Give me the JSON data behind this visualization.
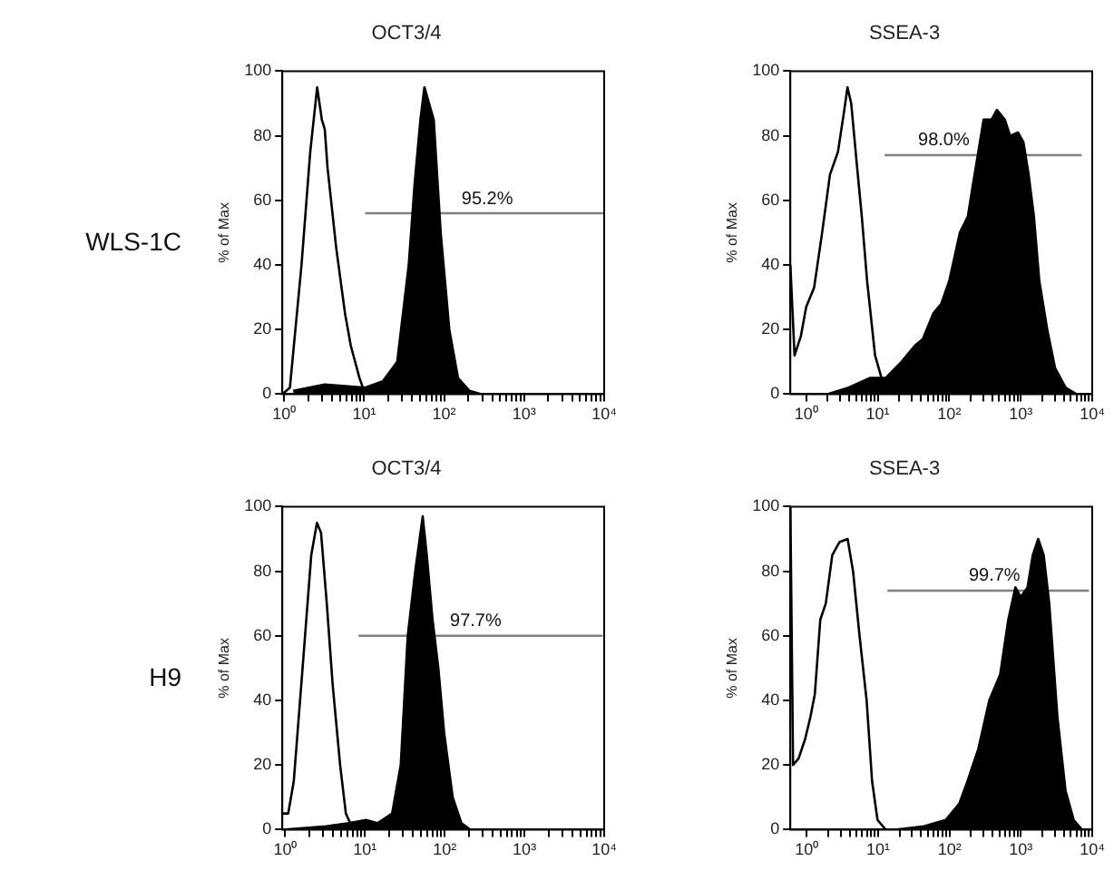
{
  "chart_data": [
    {
      "type": "line",
      "title": "OCT3/4",
      "ylabel": "% of Max",
      "annotations": [
        "WLS-1C",
        {
          "text": "95.2%",
          "x": 346,
          "y": 56
        }
      ],
      "log": "x",
      "xlim": [
        0.95,
        10000
      ],
      "ylim": [
        0,
        100
      ],
      "yticks": [
        0,
        20,
        40,
        60,
        80,
        100
      ],
      "xticks": [
        {
          "value": 1,
          "label": "10⁰"
        },
        {
          "value": 2,
          "label": null
        },
        {
          "value": 3,
          "label": null
        },
        {
          "value": 4,
          "label": null
        },
        {
          "value": 5,
          "label": null
        },
        {
          "value": 6,
          "label": null
        },
        {
          "value": 7,
          "label": null
        },
        {
          "value": 8,
          "label": null
        },
        {
          "value": 9,
          "label": null
        },
        {
          "value": 10,
          "label": "10¹"
        },
        {
          "value": 20,
          "label": null
        },
        {
          "value": 30,
          "label": null
        },
        {
          "value": 40,
          "label": null
        },
        {
          "value": 50,
          "label": null
        },
        {
          "value": 60,
          "label": null
        },
        {
          "value": 70,
          "label": null
        },
        {
          "value": 80,
          "label": null
        },
        {
          "value": 90,
          "label": null
        },
        {
          "value": 100,
          "label": "10²"
        },
        {
          "value": 200,
          "label": null
        },
        {
          "value": 300,
          "label": null
        },
        {
          "value": 400,
          "label": null
        },
        {
          "value": 500,
          "label": null
        },
        {
          "value": 600,
          "label": null
        },
        {
          "value": 700,
          "label": null
        },
        {
          "value": 800,
          "label": null
        },
        {
          "value": 900,
          "label": null
        },
        {
          "value": 1000,
          "label": "10³"
        },
        {
          "value": 2000,
          "label": null
        },
        {
          "value": 3000,
          "label": null
        },
        {
          "value": 4000,
          "label": null
        },
        {
          "value": 5000,
          "label": null
        },
        {
          "value": 6000,
          "label": null
        },
        {
          "value": 7000,
          "label": null
        },
        {
          "value": 8000,
          "label": null
        },
        {
          "value": 9000,
          "label": null
        },
        {
          "value": 10000,
          "label": "10⁴"
        }
      ],
      "grid": false,
      "marker": "none",
      "series": [
        {
          "type": "line",
          "color": "#000000",
          "x": [
            0.95,
            1.18,
            1.65,
            2.12,
            2.59,
            2.96,
            3.22,
            3.49,
            4.49,
            5.77,
            6.81,
            8.75,
            10.3
          ],
          "values": [
            0,
            2,
            40,
            75,
            95,
            85,
            82,
            70,
            45,
            25,
            15,
            5,
            0
          ]
        },
        {
          "type": "area",
          "color": "#000000",
          "x": [
            1.3,
            3.22,
            10.3,
            17.1,
            25.9,
            36.1,
            42.7,
            50.5,
            56.7,
            64.8,
            74.1,
            90.5,
            116,
            149,
            208,
            291
          ],
          "values": [
            1,
            3,
            2,
            4,
            10,
            40,
            65,
            85,
            95,
            90,
            85,
            50,
            20,
            5,
            1,
            0
          ]
        },
        {
          "type": "line",
          "color": "#808080",
          "x": [
            10.3,
            10000
          ],
          "values": [
            56,
            56
          ]
        }
      ]
    },
    {
      "type": "line",
      "title": "SSEA-3",
      "ylabel": "% of Max",
      "annotations": [
        {
          "text": "98.0%",
          "x": 84,
          "y": 74
        }
      ],
      "log": "x",
      "xlim": [
        0.6,
        10000
      ],
      "ylim": [
        0,
        100
      ],
      "yticks": [
        0,
        20,
        40,
        60,
        80,
        100
      ],
      "xticks": [
        {
          "value": 1,
          "label": "10⁰"
        },
        {
          "value": 2,
          "label": null
        },
        {
          "value": 3,
          "label": null
        },
        {
          "value": 4,
          "label": null
        },
        {
          "value": 5,
          "label": null
        },
        {
          "value": 6,
          "label": null
        },
        {
          "value": 7,
          "label": null
        },
        {
          "value": 8,
          "label": null
        },
        {
          "value": 9,
          "label": null
        },
        {
          "value": 10,
          "label": "10¹"
        },
        {
          "value": 20,
          "label": null
        },
        {
          "value": 30,
          "label": null
        },
        {
          "value": 40,
          "label": null
        },
        {
          "value": 50,
          "label": null
        },
        {
          "value": 60,
          "label": null
        },
        {
          "value": 70,
          "label": null
        },
        {
          "value": 80,
          "label": null
        },
        {
          "value": 90,
          "label": null
        },
        {
          "value": 100,
          "label": "10²"
        },
        {
          "value": 200,
          "label": null
        },
        {
          "value": 300,
          "label": null
        },
        {
          "value": 400,
          "label": null
        },
        {
          "value": 500,
          "label": null
        },
        {
          "value": 600,
          "label": null
        },
        {
          "value": 700,
          "label": null
        },
        {
          "value": 800,
          "label": null
        },
        {
          "value": 900,
          "label": null
        },
        {
          "value": 1000,
          "label": "10³"
        },
        {
          "value": 2000,
          "label": null
        },
        {
          "value": 3000,
          "label": null
        },
        {
          "value": 4000,
          "label": null
        },
        {
          "value": 5000,
          "label": null
        },
        {
          "value": 6000,
          "label": null
        },
        {
          "value": 7000,
          "label": null
        },
        {
          "value": 8000,
          "label": null
        },
        {
          "value": 9000,
          "label": null
        },
        {
          "value": 10000,
          "label": "10⁴"
        }
      ],
      "grid": false,
      "marker": "none",
      "series": [
        {
          "type": "line",
          "color": "#000000",
          "x": [
            0.6,
            0.687,
            0.843,
            1,
            1.29,
            1.67,
            2.15,
            2.78,
            3.41,
            3.78,
            4.26,
            5.06,
            5.99,
            7.11,
            9.18,
            11.3,
            14.1,
            18.2
          ],
          "values": [
            40,
            12,
            18,
            27,
            33,
            50,
            68,
            75,
            88,
            95,
            90,
            72,
            55,
            35,
            12,
            5,
            2,
            0
          ]
        },
        {
          "type": "area",
          "color": "#000000",
          "x": [
            1.98,
            3.91,
            7.74,
            12.9,
            21.5,
            33,
            42.6,
            60,
            77.4,
            100,
            141,
            182,
            215,
            255,
            303,
            391,
            464,
            599,
            711,
            918,
            1090,
            1290,
            1530,
            1820,
            2350,
            3030,
            4260,
            6000
          ],
          "values": [
            0,
            2,
            5,
            5,
            10,
            15,
            17,
            25,
            28,
            35,
            50,
            55,
            65,
            75,
            85,
            85,
            88,
            85,
            80,
            81,
            78,
            68,
            55,
            35,
            20,
            8,
            2,
            0
          ]
        },
        {
          "type": "line",
          "color": "#808080",
          "x": [
            12.5,
            7100
          ],
          "values": [
            74,
            74
          ]
        }
      ]
    },
    {
      "type": "line",
      "title": "OCT3/4",
      "ylabel": "% of Max",
      "annotations": [
        "H9",
        {
          "text": "97.7%",
          "x": 245,
          "y": 60
        }
      ],
      "log": "x",
      "xlim": [
        0.92,
        10000
      ],
      "ylim": [
        0,
        100
      ],
      "yticks": [
        0,
        20,
        40,
        60,
        80,
        100
      ],
      "xticks": [
        {
          "value": 1,
          "label": "10⁰"
        },
        {
          "value": 2,
          "label": null
        },
        {
          "value": 3,
          "label": null
        },
        {
          "value": 4,
          "label": null
        },
        {
          "value": 5,
          "label": null
        },
        {
          "value": 6,
          "label": null
        },
        {
          "value": 7,
          "label": null
        },
        {
          "value": 8,
          "label": null
        },
        {
          "value": 9,
          "label": null
        },
        {
          "value": 10,
          "label": "10¹"
        },
        {
          "value": 20,
          "label": null
        },
        {
          "value": 30,
          "label": null
        },
        {
          "value": 40,
          "label": null
        },
        {
          "value": 50,
          "label": null
        },
        {
          "value": 60,
          "label": null
        },
        {
          "value": 70,
          "label": null
        },
        {
          "value": 80,
          "label": null
        },
        {
          "value": 90,
          "label": null
        },
        {
          "value": 100,
          "label": "10²"
        },
        {
          "value": 200,
          "label": null
        },
        {
          "value": 300,
          "label": null
        },
        {
          "value": 400,
          "label": null
        },
        {
          "value": 500,
          "label": null
        },
        {
          "value": 600,
          "label": null
        },
        {
          "value": 700,
          "label": null
        },
        {
          "value": 800,
          "label": null
        },
        {
          "value": 900,
          "label": null
        },
        {
          "value": 1000,
          "label": "10³"
        },
        {
          "value": 2000,
          "label": null
        },
        {
          "value": 3000,
          "label": null
        },
        {
          "value": 4000,
          "label": null
        },
        {
          "value": 5000,
          "label": null
        },
        {
          "value": 6000,
          "label": null
        },
        {
          "value": 7000,
          "label": null
        },
        {
          "value": 8000,
          "label": null
        },
        {
          "value": 9000,
          "label": null
        },
        {
          "value": 10000,
          "label": "10⁴"
        }
      ],
      "grid": false,
      "marker": "none",
      "series": [
        {
          "type": "line",
          "color": "#000000",
          "x": [
            0.92,
            1.09,
            1.28,
            1.65,
            2.12,
            2.5,
            2.81,
            3.32,
            3.93,
            4.88,
            5.76,
            6.81,
            8.05
          ],
          "values": [
            5,
            5,
            15,
            50,
            85,
            95,
            92,
            70,
            45,
            20,
            5,
            1,
            0
          ]
        },
        {
          "type": "area",
          "color": "#000000",
          "x": [
            1,
            3.22,
            6.27,
            10.3,
            14.4,
            21.9,
            28.1,
            34.4,
            42.7,
            53,
            59.6,
            70.4,
            83.2,
            98.4,
            126,
            162,
            208
          ],
          "values": [
            0,
            1,
            2,
            3,
            2,
            5,
            20,
            60,
            80,
            97,
            85,
            65,
            50,
            30,
            10,
            2,
            0
          ]
        },
        {
          "type": "line",
          "color": "#808080",
          "x": [
            8.3,
            9600
          ],
          "values": [
            60,
            60
          ]
        }
      ]
    },
    {
      "type": "line",
      "title": "SSEA-3",
      "ylabel": "% of Max",
      "annotations": [
        {
          "text": "99.7%",
          "x": 427,
          "y": 74
        }
      ],
      "log": "x",
      "xlim": [
        0.59,
        10000
      ],
      "ylim": [
        0,
        100
      ],
      "yticks": [
        0,
        20,
        40,
        60,
        80,
        100
      ],
      "xticks": [
        {
          "value": 1,
          "label": "10⁰"
        },
        {
          "value": 2,
          "label": null
        },
        {
          "value": 3,
          "label": null
        },
        {
          "value": 4,
          "label": null
        },
        {
          "value": 5,
          "label": null
        },
        {
          "value": 6,
          "label": null
        },
        {
          "value": 7,
          "label": null
        },
        {
          "value": 8,
          "label": null
        },
        {
          "value": 9,
          "label": null
        },
        {
          "value": 10,
          "label": "10¹"
        },
        {
          "value": 20,
          "label": null
        },
        {
          "value": 30,
          "label": null
        },
        {
          "value": 40,
          "label": null
        },
        {
          "value": 50,
          "label": null
        },
        {
          "value": 60,
          "label": null
        },
        {
          "value": 70,
          "label": null
        },
        {
          "value": 80,
          "label": null
        },
        {
          "value": 90,
          "label": null
        },
        {
          "value": 100,
          "label": "10²"
        },
        {
          "value": 200,
          "label": null
        },
        {
          "value": 300,
          "label": null
        },
        {
          "value": 400,
          "label": null
        },
        {
          "value": 500,
          "label": null
        },
        {
          "value": 600,
          "label": null
        },
        {
          "value": 700,
          "label": null
        },
        {
          "value": 800,
          "label": null
        },
        {
          "value": 900,
          "label": null
        },
        {
          "value": 1000,
          "label": "10³"
        },
        {
          "value": 2000,
          "label": null
        },
        {
          "value": 3000,
          "label": null
        },
        {
          "value": 4000,
          "label": null
        },
        {
          "value": 5000,
          "label": null
        },
        {
          "value": 6000,
          "label": null
        },
        {
          "value": 7000,
          "label": null
        },
        {
          "value": 8000,
          "label": null
        },
        {
          "value": 9000,
          "label": null
        },
        {
          "value": 10000,
          "label": "10⁴"
        }
      ],
      "grid": false,
      "marker": "none",
      "series": [
        {
          "type": "line",
          "color": "#000000",
          "x": [
            0.59,
            0.644,
            0.768,
            0.949,
            1.13,
            1.3,
            1.55,
            1.85,
            2.28,
            2.87,
            3.74,
            4.46,
            5.5,
            6.91,
            8.24,
            9.82,
            12.8
          ],
          "values": [
            100,
            20,
            22,
            28,
            35,
            42,
            65,
            70,
            85,
            89,
            90,
            80,
            60,
            40,
            15,
            3,
            0
          ]
        },
        {
          "type": "area",
          "color": "#000000",
          "x": [
            18.2,
            43.8,
            88.4,
            137,
            179,
            254,
            361,
            513,
            667,
            839,
            1000,
            1240,
            1470,
            1750,
            2090,
            2500,
            3250,
            4230,
            5500,
            7160
          ],
          "values": [
            0,
            1,
            3,
            8,
            15,
            25,
            40,
            48,
            65,
            75,
            72,
            75,
            85,
            90,
            85,
            70,
            35,
            12,
            3,
            0
          ]
        },
        {
          "type": "line",
          "color": "#808080",
          "x": [
            13.5,
            9000
          ],
          "values": [
            74,
            74
          ]
        }
      ]
    }
  ]
}
